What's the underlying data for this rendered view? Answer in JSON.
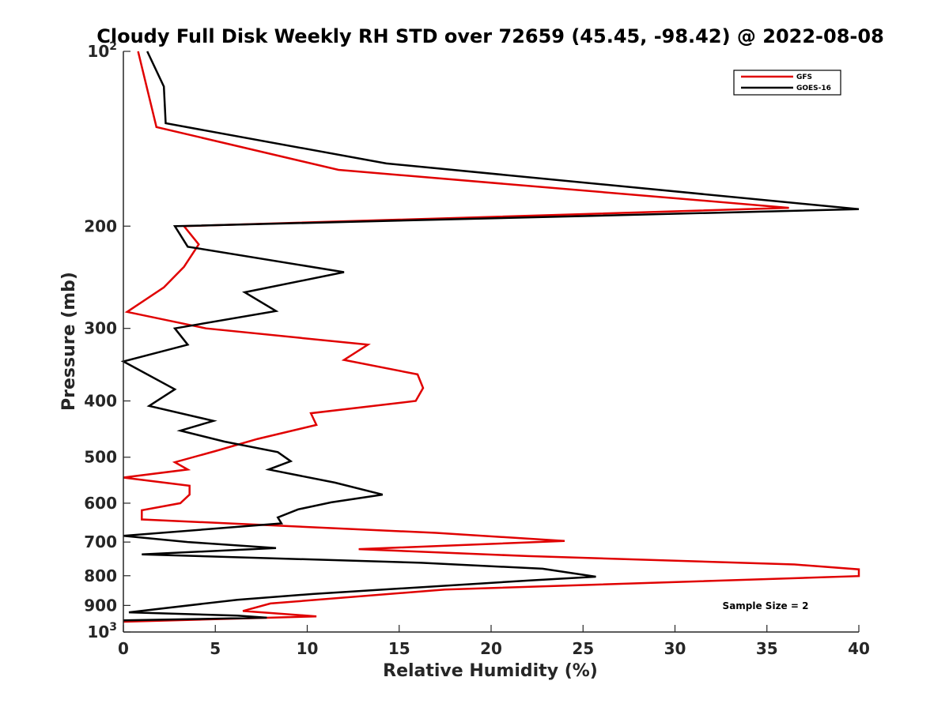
{
  "chart_data": {
    "type": "line",
    "title": "Cloudy Full Disk Weekly RH STD over 72659 (45.45, -98.42) @ 2022-08-08",
    "xlabel": "Relative Humidity (%)",
    "ylabel": "Pressure (mb)",
    "xlim": [
      0,
      40
    ],
    "ylim": [
      100,
      1000
    ],
    "y_scale": "log",
    "y_reversed": true,
    "grid": false,
    "legend_position": "top-right",
    "annotation": "Sample Size = 2",
    "x_ticks": [
      "0",
      "5",
      "10",
      "15",
      "20",
      "25",
      "30",
      "35",
      "40"
    ],
    "y_ticks": [
      {
        "value": 100,
        "base": "10",
        "exp": "2"
      },
      {
        "value": 200,
        "label": "200"
      },
      {
        "value": 300,
        "label": "300"
      },
      {
        "value": 400,
        "label": "400"
      },
      {
        "value": 500,
        "label": "500"
      },
      {
        "value": 600,
        "label": "600"
      },
      {
        "value": 700,
        "label": "700"
      },
      {
        "value": 800,
        "label": "800"
      },
      {
        "value": 900,
        "label": "900"
      },
      {
        "value": 1000,
        "base": "10",
        "exp": "3"
      }
    ],
    "series": [
      {
        "name": "GFS",
        "color": "#e00000",
        "points": [
          {
            "x": 0.8,
            "y": 100
          },
          {
            "x": 1.8,
            "y": 135
          },
          {
            "x": 11.7,
            "y": 160
          },
          {
            "x": 36.2,
            "y": 186
          },
          {
            "x": 3.3,
            "y": 200
          },
          {
            "x": 4.1,
            "y": 215
          },
          {
            "x": 3.3,
            "y": 235
          },
          {
            "x": 2.2,
            "y": 255
          },
          {
            "x": 0.2,
            "y": 281
          },
          {
            "x": 4.5,
            "y": 300
          },
          {
            "x": 13.3,
            "y": 320
          },
          {
            "x": 12.0,
            "y": 340
          },
          {
            "x": 16.0,
            "y": 360
          },
          {
            "x": 16.3,
            "y": 380
          },
          {
            "x": 15.9,
            "y": 400
          },
          {
            "x": 10.2,
            "y": 420
          },
          {
            "x": 10.5,
            "y": 440
          },
          {
            "x": 7.3,
            "y": 465
          },
          {
            "x": 5.0,
            "y": 488
          },
          {
            "x": 2.8,
            "y": 510
          },
          {
            "x": 3.5,
            "y": 525
          },
          {
            "x": 0.0,
            "y": 542
          },
          {
            "x": 3.6,
            "y": 560
          },
          {
            "x": 3.6,
            "y": 580
          },
          {
            "x": 3.1,
            "y": 600
          },
          {
            "x": 1.0,
            "y": 617
          },
          {
            "x": 1.0,
            "y": 640
          },
          {
            "x": 17.0,
            "y": 675
          },
          {
            "x": 24.0,
            "y": 697
          },
          {
            "x": 12.8,
            "y": 720
          },
          {
            "x": 22.0,
            "y": 740
          },
          {
            "x": 36.5,
            "y": 765
          },
          {
            "x": 40.0,
            "y": 780
          },
          {
            "x": 40.0,
            "y": 801
          },
          {
            "x": 17.5,
            "y": 845
          },
          {
            "x": 8.0,
            "y": 893
          },
          {
            "x": 6.5,
            "y": 920
          },
          {
            "x": 10.5,
            "y": 940
          },
          {
            "x": 0.0,
            "y": 960
          }
        ]
      },
      {
        "name": "GOES-16",
        "color": "#000000",
        "points": [
          {
            "x": 1.3,
            "y": 100
          },
          {
            "x": 2.2,
            "y": 115
          },
          {
            "x": 2.3,
            "y": 133
          },
          {
            "x": 14.3,
            "y": 156
          },
          {
            "x": 40.0,
            "y": 187
          },
          {
            "x": 2.8,
            "y": 200
          },
          {
            "x": 3.5,
            "y": 217
          },
          {
            "x": 12.0,
            "y": 240
          },
          {
            "x": 6.6,
            "y": 260
          },
          {
            "x": 8.3,
            "y": 280
          },
          {
            "x": 2.8,
            "y": 300
          },
          {
            "x": 3.5,
            "y": 320
          },
          {
            "x": 0.0,
            "y": 342
          },
          {
            "x": 2.8,
            "y": 382
          },
          {
            "x": 1.4,
            "y": 408
          },
          {
            "x": 4.9,
            "y": 433
          },
          {
            "x": 3.1,
            "y": 450
          },
          {
            "x": 5.5,
            "y": 470
          },
          {
            "x": 8.4,
            "y": 490
          },
          {
            "x": 9.1,
            "y": 508
          },
          {
            "x": 7.9,
            "y": 525
          },
          {
            "x": 11.5,
            "y": 553
          },
          {
            "x": 14.1,
            "y": 580
          },
          {
            "x": 11.3,
            "y": 598
          },
          {
            "x": 9.5,
            "y": 615
          },
          {
            "x": 8.4,
            "y": 635
          },
          {
            "x": 8.6,
            "y": 650
          },
          {
            "x": 0.0,
            "y": 683
          },
          {
            "x": 3.5,
            "y": 700
          },
          {
            "x": 8.3,
            "y": 717
          },
          {
            "x": 1.0,
            "y": 735
          },
          {
            "x": 16.2,
            "y": 760
          },
          {
            "x": 22.8,
            "y": 778
          },
          {
            "x": 25.7,
            "y": 803
          },
          {
            "x": 22.1,
            "y": 815
          },
          {
            "x": 10.3,
            "y": 860
          },
          {
            "x": 6.2,
            "y": 880
          },
          {
            "x": 0.3,
            "y": 925
          },
          {
            "x": 6.2,
            "y": 937
          },
          {
            "x": 7.8,
            "y": 945
          },
          {
            "x": 0.0,
            "y": 955
          }
        ]
      }
    ]
  }
}
